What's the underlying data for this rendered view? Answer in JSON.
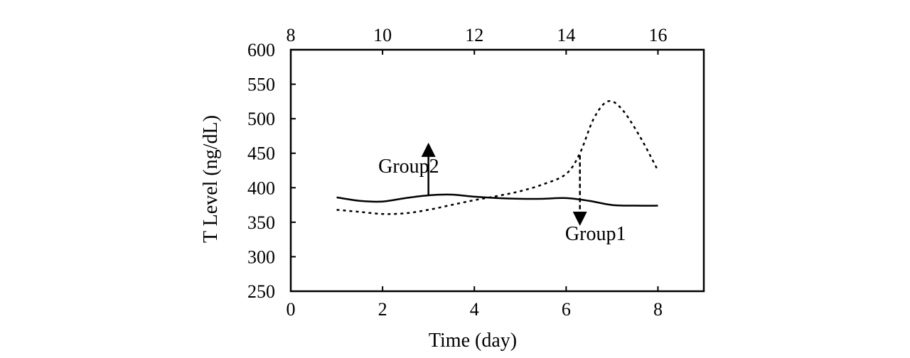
{
  "chart_data": {
    "type": "line",
    "title": "",
    "xlabel": "Time (day)",
    "ylabel": "T Level (ng/dL)",
    "xlim": [
      0,
      9
    ],
    "ylim": [
      250,
      600
    ],
    "x_ticks": [
      "0",
      "2",
      "4",
      "6",
      "8"
    ],
    "x_tick_values": [
      0,
      2,
      4,
      6,
      8
    ],
    "x2_ticks": [
      "8",
      "10",
      "12",
      "14",
      "16"
    ],
    "x2_tick_values": [
      8,
      10,
      12,
      14,
      16
    ],
    "x2lim": [
      8,
      17
    ],
    "y_ticks": [
      "250",
      "300",
      "350",
      "400",
      "450",
      "500",
      "550",
      "600"
    ],
    "y_tick_values": [
      250,
      300,
      350,
      400,
      450,
      500,
      550,
      600
    ],
    "grid": false,
    "series": [
      {
        "style": "solid",
        "x": [
          1,
          1.5,
          2,
          2.5,
          3,
          3.5,
          4,
          4.5,
          5,
          5.5,
          6,
          6.5,
          7,
          7.5,
          8
        ],
        "y": [
          386,
          381,
          380,
          385,
          389,
          390,
          387,
          385,
          384,
          384,
          385,
          381,
          375,
          374,
          374
        ]
      },
      {
        "style": "dotted",
        "x": [
          1,
          1.5,
          2,
          2.5,
          3,
          3.5,
          4,
          4.5,
          5,
          5.5,
          6,
          6.3,
          6.6,
          6.9,
          7.2,
          7.6,
          8
        ],
        "y": [
          368,
          365,
          362,
          363,
          368,
          375,
          382,
          388,
          395,
          405,
          420,
          450,
          500,
          525,
          515,
          475,
          425
        ]
      }
    ],
    "annotations": [
      {
        "text": "Group2",
        "arrow": "up",
        "x": 3,
        "y_from": 390,
        "y_to": 455
      },
      {
        "text": "Group1",
        "arrow": "down",
        "x": 6.3,
        "y_from": 447,
        "y_to": 355
      }
    ]
  }
}
